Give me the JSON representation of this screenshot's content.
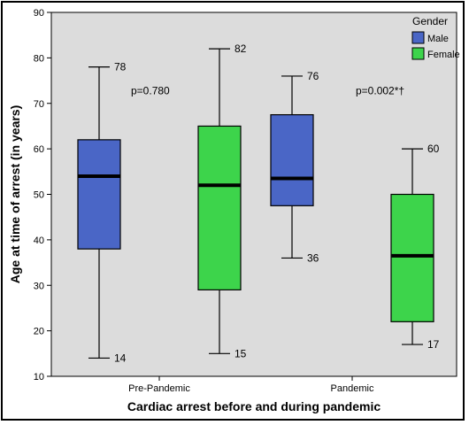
{
  "chart_data": {
    "type": "boxplot",
    "xlabel": "Cardiac arrest before and during pandemic",
    "ylabel": "Age at time of arrest (in years)",
    "ylim": [
      10,
      90
    ],
    "yticks": [
      10,
      20,
      30,
      40,
      50,
      60,
      70,
      80,
      90
    ],
    "categories": [
      "Pre-Pandemic",
      "Pandemic"
    ],
    "legend": {
      "title": "Gender",
      "placement": "top-right"
    },
    "series": [
      {
        "name": "Male",
        "color": "#4a66c6",
        "boxes": [
          {
            "min": 14,
            "q1": 38,
            "median": 54,
            "q3": 62,
            "max": 78,
            "min_label": "14",
            "max_label": "78"
          },
          {
            "min": 36,
            "q1": 47.5,
            "median": 53.5,
            "q3": 67.5,
            "max": 76,
            "min_label": "36",
            "max_label": "76"
          }
        ]
      },
      {
        "name": "Female",
        "color": "#3dd44b",
        "boxes": [
          {
            "min": 15,
            "q1": 29,
            "median": 52,
            "q3": 65,
            "max": 82,
            "min_label": "15",
            "max_label": "82"
          },
          {
            "min": 17,
            "q1": 22,
            "median": 36.5,
            "q3": 50,
            "max": 60,
            "min_label": "17",
            "max_label": "60"
          }
        ]
      }
    ],
    "annotations": [
      "p=0.780",
      "p=0.002*†"
    ],
    "grid": false,
    "plot_background": "#dcdcdc"
  }
}
